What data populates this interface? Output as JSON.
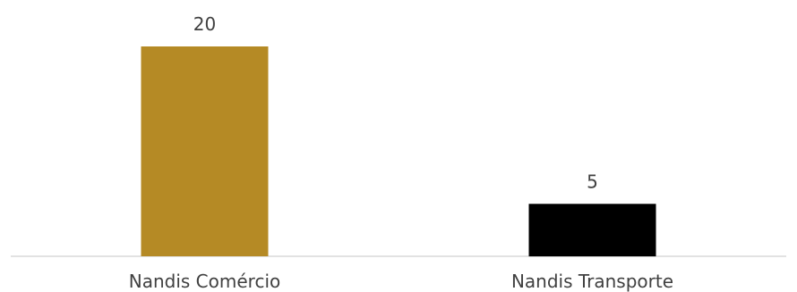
{
  "chart_data": {
    "type": "bar",
    "categories": [
      "Nandis Comércio",
      "Nandis Transporte"
    ],
    "values": [
      20,
      5
    ],
    "colors": [
      "#b58a25",
      "#000000"
    ],
    "data_labels": [
      "20",
      "5"
    ],
    "title": "",
    "xlabel": "",
    "ylabel": "",
    "ylim": [
      0,
      20
    ],
    "grid": false,
    "legend": "none",
    "axis_color": "#d9d9d9"
  }
}
